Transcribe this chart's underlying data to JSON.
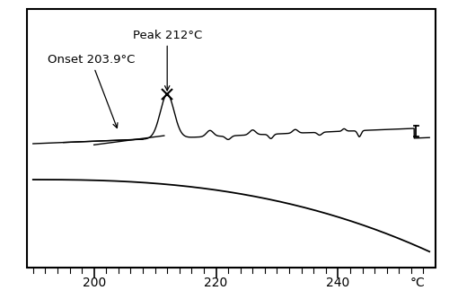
{
  "xlim": [
    189,
    256
  ],
  "xlabel": "°C",
  "xticks": [
    200,
    220,
    240
  ],
  "onset_label": "Onset 203.9°C",
  "peak_label": "Peak 212°C",
  "background_color": "#ffffff",
  "line_color": "#000000",
  "annotation_fontsize": 9.5,
  "tick_fontsize": 10
}
